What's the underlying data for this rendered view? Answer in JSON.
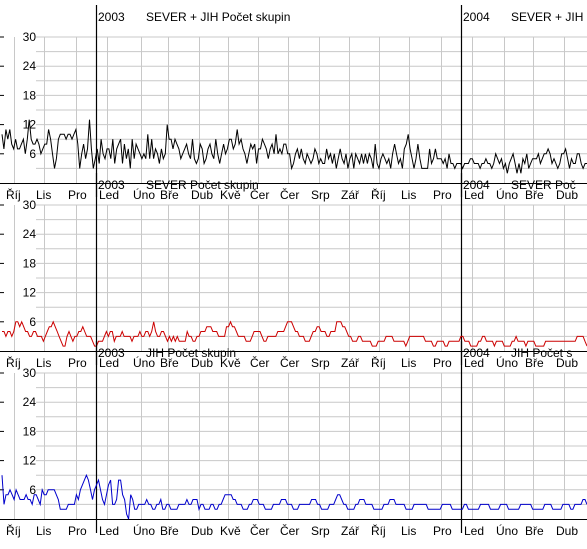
{
  "chart_data": [
    {
      "type": "line",
      "title_parts": [
        {
          "year": "2003",
          "text": "SEVER + JIH   Počet skupin"
        },
        {
          "year": "2004",
          "text": "SEVER + JIH"
        }
      ],
      "ylim": [
        0,
        30
      ],
      "yticks": [
        6,
        12,
        18,
        24,
        30
      ],
      "x_tick_labels": [
        "Říj",
        "Lis",
        "Pro",
        "Led",
        "Úno",
        "Bře",
        "Dub",
        "Kvě",
        "Čer",
        "Čer",
        "Srp",
        "Zář",
        "Říj",
        "Lis",
        "Pro",
        "Led",
        "Úno",
        "Bře",
        "Dub"
      ],
      "grid": true,
      "series": [
        {
          "color": "#000000",
          "values": [
            10,
            7,
            11,
            9,
            11,
            8,
            7,
            9,
            7,
            7,
            8,
            9,
            6,
            9,
            13,
            9,
            8,
            8,
            9,
            8,
            6,
            7,
            8,
            8,
            11,
            9,
            6,
            3,
            5,
            9,
            10,
            10,
            10,
            9,
            10,
            10,
            9,
            10,
            11,
            8,
            3,
            6,
            8,
            5,
            7,
            13,
            7,
            3,
            5,
            7,
            4,
            9,
            6,
            5,
            7,
            7,
            5,
            9,
            4,
            7,
            8,
            9,
            4,
            8,
            5,
            7,
            3,
            9,
            5,
            8,
            7,
            6,
            5,
            6,
            5,
            10,
            5,
            9,
            5,
            7,
            6,
            4,
            7,
            5,
            6,
            12,
            9,
            9,
            7,
            9,
            8,
            7,
            5,
            6,
            7,
            8,
            6,
            5,
            9,
            5,
            4,
            5,
            8,
            7,
            4,
            5,
            7,
            8,
            6,
            5,
            9,
            6,
            4,
            6,
            8,
            6,
            7,
            9,
            9,
            7,
            8,
            11,
            8,
            9,
            7,
            6,
            4,
            6,
            8,
            7,
            8,
            4,
            7,
            7,
            9,
            8,
            7,
            5,
            7,
            8,
            6,
            10,
            6,
            7,
            6,
            8,
            8,
            6,
            6,
            3,
            4,
            6,
            7,
            5,
            7,
            5,
            4,
            6,
            5,
            4,
            5,
            7,
            6,
            4,
            5,
            4,
            4,
            7,
            5,
            6,
            4,
            6,
            3,
            5,
            7,
            5,
            4,
            6,
            3,
            5,
            6,
            3,
            6,
            5,
            4,
            6,
            4,
            6,
            4,
            6,
            5,
            3,
            8,
            4,
            3,
            5,
            6,
            5,
            4,
            5,
            3,
            6,
            8,
            6,
            4,
            5,
            3,
            7,
            8,
            10,
            7,
            5,
            3,
            5,
            8,
            5,
            3,
            3,
            3,
            3,
            7,
            4,
            5,
            7,
            5,
            5,
            5,
            4,
            5,
            3,
            6,
            4,
            4,
            3,
            4,
            4,
            4,
            3,
            4,
            4,
            4,
            5,
            5,
            4,
            4,
            4,
            3,
            4,
            4,
            5,
            4,
            4,
            3,
            4,
            6,
            5,
            4,
            5,
            3,
            4,
            2,
            4,
            5,
            6,
            4,
            2,
            4,
            2,
            5,
            4,
            6,
            3,
            4,
            5,
            5,
            5,
            6,
            4,
            5,
            6,
            6,
            7,
            6,
            4,
            5,
            4,
            3,
            4,
            6,
            6,
            7,
            5,
            3,
            5,
            4,
            4,
            6,
            6,
            4,
            3,
            4,
            4
          ]
        }
      ]
    },
    {
      "type": "line",
      "title_parts": [
        {
          "year": "2003",
          "text": "SEVER   Počet skupin"
        },
        {
          "year": "2004",
          "text": "SEVER   Poč"
        }
      ],
      "ylim": [
        0,
        30
      ],
      "yticks": [
        6,
        12,
        18,
        24,
        30
      ],
      "x_tick_labels": [
        "Říj",
        "Lis",
        "Pro",
        "Led",
        "Úno",
        "Bře",
        "Dub",
        "Kvě",
        "Čer",
        "Čer",
        "Srp",
        "Zář",
        "Říj",
        "Lis",
        "Pro",
        "Led",
        "Úno",
        "Bře",
        "Dub"
      ],
      "grid": true,
      "series": [
        {
          "color": "#cc0000",
          "values": [
            4,
            4,
            3,
            4,
            4,
            3,
            4,
            6,
            6,
            5,
            6,
            5,
            4,
            4,
            3,
            3,
            4,
            4,
            3,
            3,
            3,
            2,
            3,
            4,
            5,
            5,
            6,
            5,
            4,
            3,
            2,
            1,
            1,
            3,
            4,
            3,
            2,
            3,
            3,
            4,
            4,
            5,
            4,
            3,
            3,
            3,
            2,
            1,
            1,
            2,
            2,
            2,
            3,
            4,
            3,
            4,
            4,
            2,
            3,
            3,
            3,
            4,
            3,
            3,
            3,
            3,
            2,
            3,
            3,
            3,
            4,
            3,
            3,
            4,
            4,
            3,
            4,
            6,
            4,
            3,
            3,
            4,
            4,
            3,
            2,
            3,
            2,
            3,
            2,
            3,
            2,
            2,
            2,
            2,
            4,
            3,
            3,
            2,
            2,
            3,
            3,
            4,
            4,
            4,
            5,
            5,
            5,
            4,
            4,
            4,
            3,
            3,
            3,
            3,
            5,
            5,
            6,
            5,
            5,
            4,
            3,
            3,
            3,
            3,
            2,
            2,
            2,
            3,
            4,
            4,
            4,
            4,
            3,
            2,
            2,
            3,
            3,
            3,
            3,
            3,
            4,
            4,
            4,
            4,
            5,
            6,
            6,
            6,
            5,
            4,
            4,
            3,
            3,
            3,
            2,
            2,
            2,
            3,
            4,
            4,
            5,
            5,
            4,
            4,
            4,
            3,
            3,
            4,
            4,
            4,
            6,
            6,
            6,
            5,
            5,
            4,
            3,
            3,
            2,
            2,
            2,
            3,
            3,
            2,
            2,
            2,
            2,
            2,
            1,
            1,
            1,
            2,
            2,
            2,
            2,
            3,
            3,
            3,
            3,
            2,
            2,
            2,
            2,
            2,
            2,
            1,
            2,
            3,
            3,
            3,
            3,
            3,
            3,
            3,
            3,
            2,
            2,
            2,
            2,
            1,
            1,
            2,
            2,
            2,
            2,
            1,
            1,
            2,
            2,
            2,
            2,
            2,
            2,
            3,
            3,
            2,
            2,
            2,
            1,
            1,
            1,
            1,
            2,
            2,
            3,
            3,
            2,
            2,
            2,
            2,
            1,
            2,
            2,
            2,
            2,
            1,
            1,
            1,
            1,
            2,
            2,
            3,
            2,
            2,
            2,
            2,
            1,
            2,
            2,
            2,
            2,
            1,
            1,
            1,
            1,
            1,
            2,
            2,
            2,
            2,
            2,
            2,
            2,
            2,
            2,
            2,
            2,
            2,
            2,
            2,
            2,
            2,
            3,
            3,
            3,
            3,
            2,
            1
          ]
        }
      ]
    },
    {
      "type": "line",
      "title_parts": [
        {
          "year": "2003",
          "text": "JIH   Počet skupin"
        },
        {
          "year": "2004",
          "text": "JIH   Počet s"
        }
      ],
      "ylim": [
        0,
        30
      ],
      "yticks": [
        6,
        12,
        18,
        24,
        30
      ],
      "x_tick_labels": [
        "Říj",
        "Lis",
        "Pro",
        "Led",
        "Úno",
        "Bře",
        "Dub",
        "Kvě",
        "Čer",
        "Čer",
        "Srp",
        "Zář",
        "Říj",
        "Lis",
        "Pro",
        "Led",
        "Úno",
        "Bře",
        "Dub"
      ],
      "grid": true,
      "series": [
        {
          "color": "#0000cc",
          "values": [
            9,
            3,
            5,
            5,
            6,
            5,
            4,
            6,
            5,
            4,
            4,
            4,
            5,
            4,
            4,
            3,
            5,
            5,
            4,
            3,
            6,
            5,
            5,
            6,
            6,
            6,
            6,
            5,
            4,
            2,
            2,
            2,
            2,
            3,
            3,
            3,
            3,
            5,
            4,
            6,
            7,
            8,
            9,
            8,
            6,
            4,
            6,
            7,
            8,
            6,
            4,
            3,
            5,
            7,
            8,
            3,
            3,
            4,
            8,
            8,
            5,
            4,
            1,
            0,
            5,
            4,
            2,
            2,
            3,
            3,
            3,
            3,
            4,
            3,
            3,
            2,
            2,
            3,
            3,
            4,
            2,
            2,
            3,
            3,
            2,
            2,
            2,
            2,
            3,
            3,
            3,
            3,
            4,
            3,
            3,
            4,
            4,
            4,
            2,
            3,
            3,
            2,
            2,
            2,
            3,
            3,
            2,
            2,
            3,
            3,
            4,
            5,
            5,
            5,
            5,
            4,
            4,
            3,
            3,
            3,
            2,
            2,
            2,
            3,
            3,
            4,
            4,
            4,
            3,
            3,
            3,
            2,
            2,
            2,
            2,
            3,
            3,
            3,
            3,
            4,
            4,
            4,
            3,
            3,
            3,
            2,
            2,
            2,
            3,
            3,
            3,
            3,
            3,
            3,
            4,
            4,
            4,
            3,
            3,
            2,
            2,
            2,
            2,
            3,
            3,
            3,
            4,
            5,
            5,
            4,
            3,
            3,
            2,
            2,
            2,
            2,
            3,
            3,
            4,
            4,
            4,
            3,
            3,
            3,
            3,
            2,
            2,
            2,
            2,
            2,
            3,
            3,
            3,
            4,
            4,
            4,
            3,
            3,
            3,
            3,
            3,
            2,
            2,
            2,
            2,
            3,
            3,
            3,
            3,
            3,
            3,
            3,
            2,
            2,
            2,
            2,
            2,
            2,
            2,
            3,
            3,
            3,
            3,
            3,
            2,
            2,
            2,
            2,
            2,
            2,
            3,
            3,
            2,
            2,
            2,
            2,
            2,
            2,
            3,
            3,
            3,
            3,
            3,
            2,
            2,
            2,
            2,
            2,
            3,
            3,
            3,
            3,
            2,
            2,
            2,
            2,
            2,
            2,
            3,
            3,
            3,
            3,
            3,
            3,
            2,
            2,
            2,
            2,
            2,
            2,
            3,
            3,
            3,
            3,
            2,
            2,
            2,
            2,
            2,
            3,
            3,
            3,
            3,
            2,
            2,
            3,
            3,
            3,
            3,
            4,
            4,
            3
          ]
        }
      ]
    }
  ]
}
